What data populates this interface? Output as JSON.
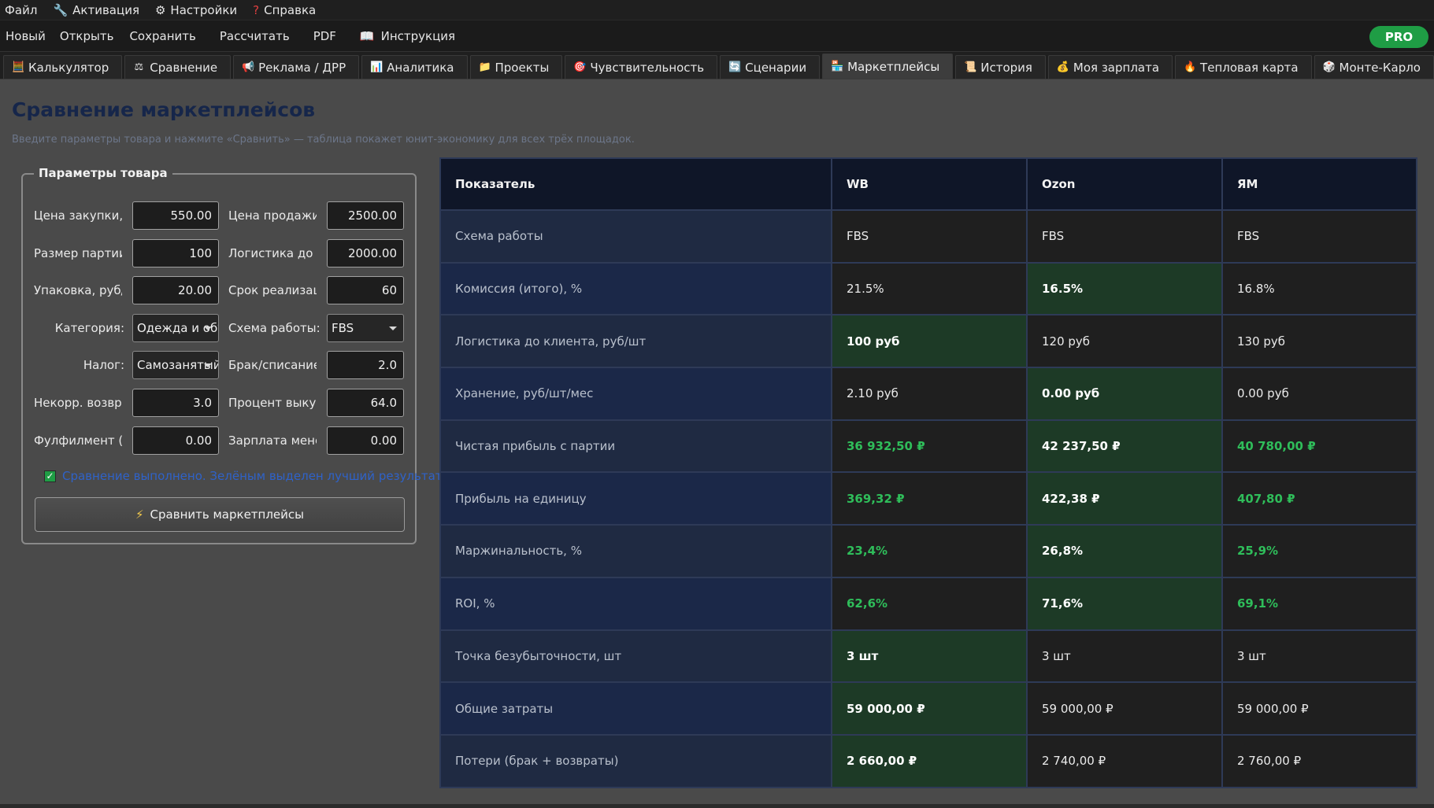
{
  "menu": [
    {
      "label": "Файл",
      "icon": ""
    },
    {
      "label": "Активация",
      "icon": "wrench-icon"
    },
    {
      "label": "Настройки",
      "icon": "gear-icon"
    },
    {
      "label": "Справка",
      "icon": "question-icon"
    }
  ],
  "toolbar": {
    "new": "Новый",
    "open": "Открыть",
    "save": "Сохранить",
    "calc": "Рассчитать",
    "pdf": "PDF",
    "guide": "Инструкция",
    "pro": "PRO"
  },
  "tabs": [
    {
      "label": "Калькулятор",
      "icon": "abacus-icon"
    },
    {
      "label": "Сравнение",
      "icon": "scales-icon"
    },
    {
      "label": "Реклама / ДРР",
      "icon": "megaphone-icon"
    },
    {
      "label": "Аналитика",
      "icon": "bar-chart-icon"
    },
    {
      "label": "Проекты",
      "icon": "folder-icon"
    },
    {
      "label": "Чувствительность",
      "icon": "target-icon"
    },
    {
      "label": "Сценарии",
      "icon": "cycle-icon"
    },
    {
      "label": "Маркетплейсы",
      "icon": "store-icon"
    },
    {
      "label": "История",
      "icon": "scroll-icon"
    },
    {
      "label": "Моя зарплата",
      "icon": "money-bag-icon"
    },
    {
      "label": "Тепловая карта",
      "icon": "fire-icon"
    },
    {
      "label": "Монте-Карло",
      "icon": "dice-icon"
    }
  ],
  "page": {
    "title": "Сравнение маркетплейсов",
    "subtitle": "Введите параметры товара и нажмите «Сравнить» — таблица покажет юнит-экономику для всех трёх площадок."
  },
  "params": {
    "group_title": "Параметры товара",
    "purchase_price_label": "Цена закупки, руб",
    "purchase_price": "550.00",
    "sale_price_label": "Цена продажи, руб",
    "sale_price": "2500.00",
    "batch_label": "Размер партии, шт",
    "batch": "100",
    "logistics_label": "Логистика до склада",
    "logistics": "2000.00",
    "packing_label": "Упаковка, руб/шт",
    "packing": "20.00",
    "term_label": "Срок реализации",
    "term": "60",
    "category_label": "Категория:",
    "category": "Одежда и обувь",
    "scheme_label": "Схема работы:",
    "scheme": "FBS",
    "tax_label": "Налог:",
    "tax": "Самозанятый",
    "defect_label": "Брак/списание, %",
    "defect": "2.0",
    "nonreturn_label": "Некорр. возврат",
    "nonreturn": "3.0",
    "buyout_label": "Процент выкупа",
    "buyout": "64.0",
    "fulfil_label": "Фулфилмент (без",
    "fulfil": "0.00",
    "salary_label": "Зарплата менеджера",
    "salary": "0.00",
    "status": "Сравнение выполнено. Зелёным выделен лучший результат.",
    "button": "Сравнить маркетплейсы"
  },
  "table": {
    "headers": [
      "Показатель",
      "WB",
      "Ozon",
      "ЯМ"
    ],
    "rows": [
      {
        "metric": "Схема работы",
        "wb": "FBS",
        "ozon": "FBS",
        "ym": "FBS"
      },
      {
        "metric": "Комиссия (итого), %",
        "wb": "21.5%",
        "ozon": "16.5%",
        "ym": "16.8%"
      },
      {
        "metric": "Логистика до клиента, руб/шт",
        "wb": "100 руб",
        "ozon": "120 руб",
        "ym": "130 руб"
      },
      {
        "metric": "Хранение, руб/шт/мес",
        "wb": "2.10 руб",
        "ozon": "0.00 руб",
        "ym": "0.00 руб"
      },
      {
        "metric": "Чистая прибыль с партии",
        "wb": "36 932,50 ₽",
        "ozon": "42 237,50 ₽",
        "ym": "40 780,00 ₽"
      },
      {
        "metric": "Прибыль на единицу",
        "wb": "369,32 ₽",
        "ozon": "422,38 ₽",
        "ym": "407,80 ₽"
      },
      {
        "metric": "Маржинальность, %",
        "wb": "23,4%",
        "ozon": "26,8%",
        "ym": "25,9%"
      },
      {
        "metric": "ROI, %",
        "wb": "62,6%",
        "ozon": "71,6%",
        "ym": "69,1%"
      },
      {
        "metric": "Точка безубыточности, шт",
        "wb": "3 шт",
        "ozon": "3 шт",
        "ym": "3 шт"
      },
      {
        "metric": "Общие затраты",
        "wb": "59 000,00 ₽",
        "ozon": "59 000,00 ₽",
        "ym": "59 000,00 ₽"
      },
      {
        "metric": "Потери (брак + возвраты)",
        "wb": "2 660,00 ₽",
        "ozon": "2 740,00 ₽",
        "ym": "2 760,00 ₽"
      }
    ]
  }
}
